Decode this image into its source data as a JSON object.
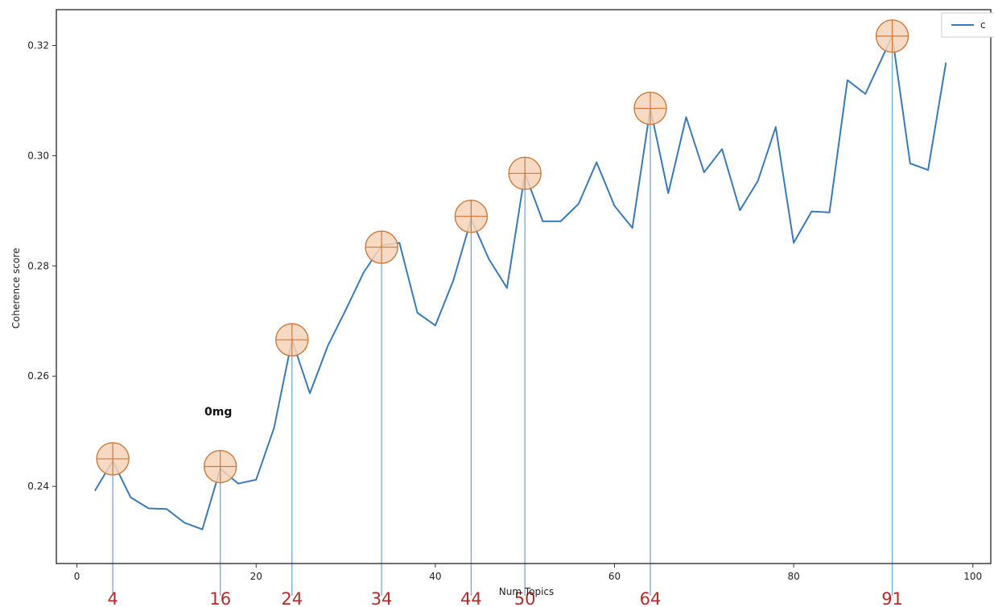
{
  "chart_data": {
    "type": "line",
    "xlabel": "Num Topics",
    "ylabel": "Coherence score",
    "xlim": [
      -2.3,
      102
    ],
    "ylim": [
      0.226,
      0.3265
    ],
    "x_ticks": [
      0,
      20,
      40,
      60,
      80,
      100
    ],
    "y_ticks": [
      0.24,
      0.26,
      0.28,
      0.3,
      0.32
    ],
    "x_tick_labels": [
      "0",
      "20",
      "40",
      "60",
      "80",
      "100"
    ],
    "y_tick_labels": [
      "0.24",
      "0.26",
      "0.28",
      "0.30",
      "0.32"
    ],
    "grid": false,
    "legend": {
      "placement": "top-right",
      "entries": [
        "c"
      ]
    },
    "series": [
      {
        "name": "c",
        "color": "#3a7ab8",
        "x": [
          2,
          4,
          6,
          8,
          10,
          12,
          14,
          16,
          18,
          20,
          22,
          24,
          26,
          28,
          30,
          32,
          34,
          36,
          38,
          40,
          42,
          44,
          46,
          48,
          50,
          52,
          54,
          56,
          58,
          60,
          62,
          64,
          66,
          68,
          70,
          72,
          74,
          76,
          78,
          80,
          82,
          84,
          86,
          88,
          90,
          91,
          93,
          95,
          97
        ],
        "y": [
          0.2392,
          0.2446,
          0.238,
          0.236,
          0.2359,
          0.2334,
          0.2322,
          0.2432,
          0.2405,
          0.2412,
          0.2506,
          0.2666,
          0.2569,
          0.2655,
          0.272,
          0.2788,
          0.2837,
          0.2842,
          0.2715,
          0.2692,
          0.2773,
          0.2885,
          0.2812,
          0.276,
          0.2968,
          0.2881,
          0.2881,
          0.2913,
          0.2988,
          0.2909,
          0.2869,
          0.3086,
          0.2932,
          0.307,
          0.297,
          0.3012,
          0.2901,
          0.2954,
          0.3052,
          0.2842,
          0.2899,
          0.2897,
          0.3137,
          0.3112,
          0.3182,
          0.3217,
          0.2986,
          0.2974,
          0.3169
        ]
      }
    ],
    "highlights": {
      "color": "#f6d4b8",
      "edge_color": "#cc7a3c",
      "line_color": "#7aa6d4",
      "points": [
        {
          "x": 4,
          "y": 0.245,
          "label": "4"
        },
        {
          "x": 16,
          "y": 0.2436,
          "label": "16"
        },
        {
          "x": 24,
          "y": 0.2666,
          "label": "24"
        },
        {
          "x": 34,
          "y": 0.2834,
          "label": "34"
        },
        {
          "x": 44,
          "y": 0.289,
          "label": "44"
        },
        {
          "x": 50,
          "y": 0.2968,
          "label": "50"
        },
        {
          "x": 64,
          "y": 0.3086,
          "label": "64"
        },
        {
          "x": 91,
          "y": 0.3217,
          "label": "91"
        }
      ]
    },
    "annotation": "0mg"
  }
}
